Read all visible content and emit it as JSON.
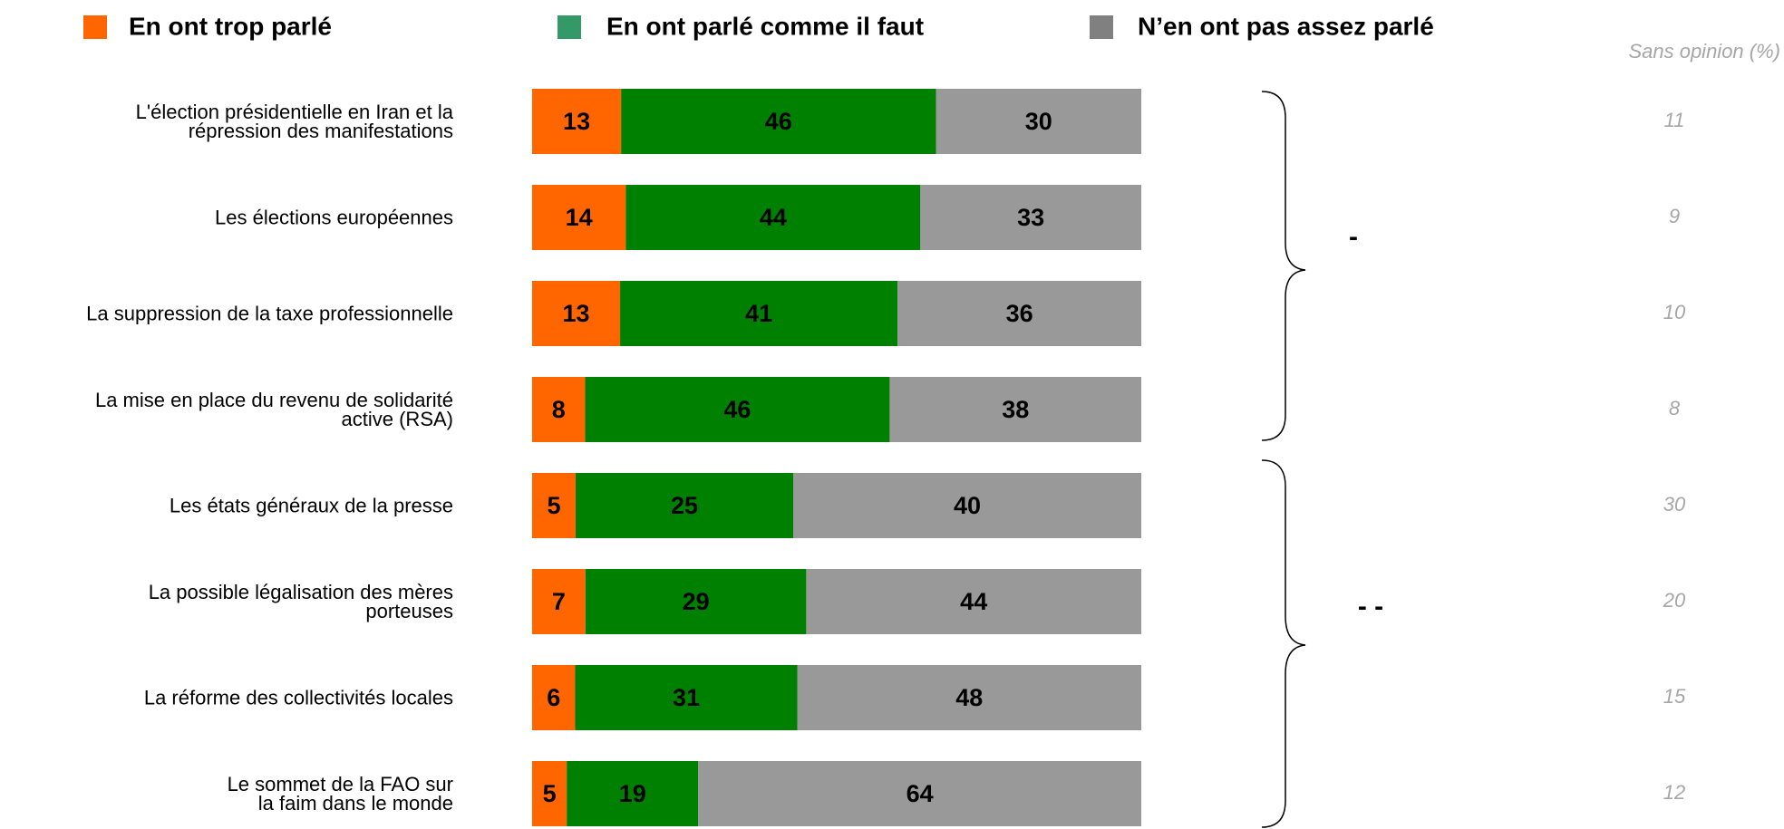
{
  "chart_data": {
    "type": "stacked_bar_horizontal",
    "categories": [
      "L'élection présidentielle en Iran et la\nrépression des manifestations",
      "Les élections européennes",
      "La suppression de la taxe professionnelle",
      "La mise en place du revenu de solidarité\nactive (RSA)",
      "Les états généraux de la presse",
      "La possible légalisation des mères\nporteuses",
      "La réforme des collectivités locales",
      "Le sommet de la FAO sur\nla faim dans le monde"
    ],
    "series": [
      {
        "name": "En ont trop parlé",
        "color": "#ff6600",
        "legend_color": "#ff6600",
        "values": [
          13,
          14,
          13,
          8,
          5,
          7,
          6,
          5
        ]
      },
      {
        "name": "En ont parlé comme il faut",
        "color": "#008000",
        "legend_color": "#339966",
        "values": [
          46,
          44,
          41,
          46,
          25,
          29,
          31,
          19
        ]
      },
      {
        "name": "N’en ont pas assez parlé",
        "color": "#999999",
        "legend_color": "#808080",
        "values": [
          30,
          33,
          36,
          38,
          40,
          44,
          48,
          64
        ]
      }
    ],
    "sans_opinion": {
      "label": "Sans opinion (%)",
      "values": [
        11,
        9,
        10,
        8,
        30,
        20,
        15,
        12
      ]
    },
    "annotations": [
      "-",
      "- -"
    ]
  }
}
